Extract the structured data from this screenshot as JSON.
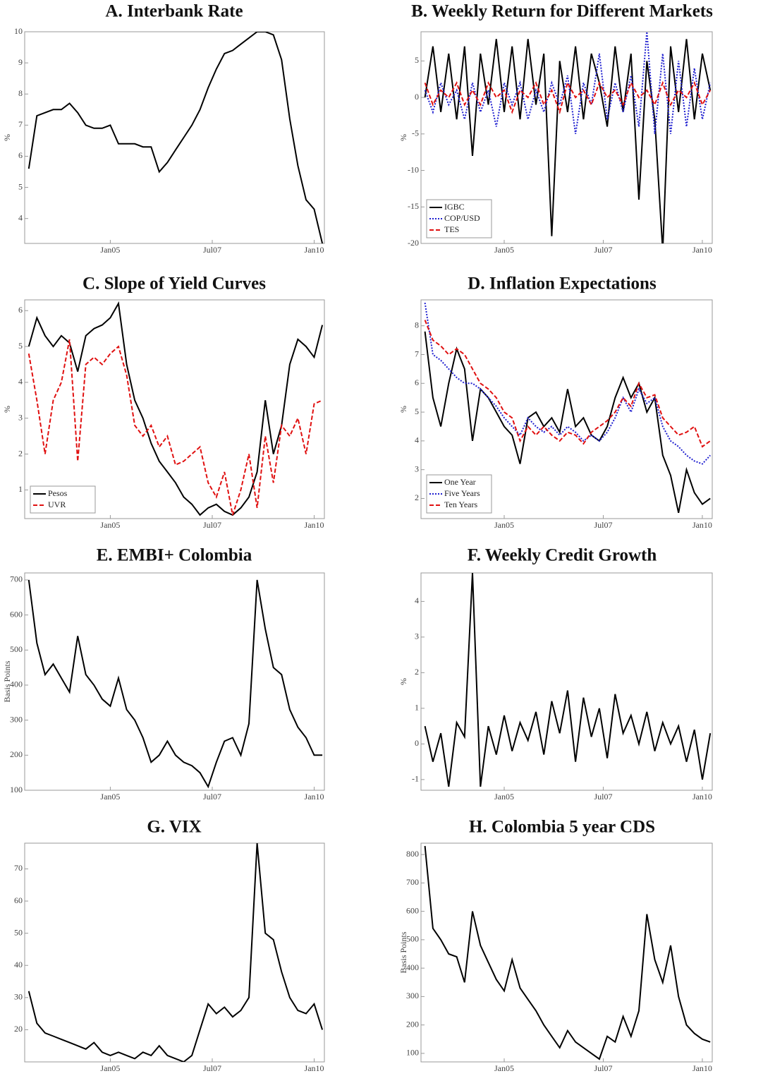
{
  "chart_data": [
    {
      "type": "line",
      "title": "A. Interbank Rate",
      "y_label": "%",
      "x": [
        2003.0,
        2003.2,
        2003.4,
        2003.6,
        2003.8,
        2004.0,
        2004.2,
        2004.4,
        2004.6,
        2004.8,
        2005.0,
        2005.2,
        2005.4,
        2005.6,
        2005.8,
        2006.0,
        2006.2,
        2006.4,
        2006.6,
        2006.8,
        2007.0,
        2007.2,
        2007.4,
        2007.6,
        2007.8,
        2008.0,
        2008.2,
        2008.4,
        2008.6,
        2008.8,
        2009.0,
        2009.2,
        2009.4,
        2009.6,
        2009.8,
        2010.0,
        2010.2
      ],
      "values": [
        5.6,
        7.3,
        7.4,
        7.5,
        7.5,
        7.7,
        7.4,
        7.0,
        6.9,
        6.9,
        7.0,
        6.4,
        6.4,
        6.4,
        6.3,
        6.3,
        5.5,
        5.8,
        6.2,
        6.6,
        7.0,
        7.5,
        8.2,
        8.8,
        9.3,
        9.4,
        9.6,
        9.8,
        10.0,
        10.0,
        9.9,
        9.1,
        7.2,
        5.7,
        4.6,
        4.3,
        3.2
      ],
      "color": "#000000",
      "xlim": [
        2002.9,
        2010.25
      ],
      "xticks": [
        {
          "value": 2005,
          "label": "Jan05"
        },
        {
          "value": 2007.5,
          "label": "Jul07"
        },
        {
          "value": 2010,
          "label": "Jan10"
        }
      ],
      "ylim": [
        3.2,
        10
      ],
      "yticks": [
        4,
        5,
        6,
        7,
        8,
        9,
        10
      ]
    },
    {
      "type": "line",
      "title": "B. Weekly Return for Different Markets",
      "y_label": "%",
      "x": [
        2003.0,
        2003.2,
        2003.4,
        2003.6,
        2003.8,
        2004.0,
        2004.2,
        2004.4,
        2004.6,
        2004.8,
        2005.0,
        2005.2,
        2005.4,
        2005.6,
        2005.8,
        2006.0,
        2006.2,
        2006.4,
        2006.6,
        2006.8,
        2007.0,
        2007.2,
        2007.4,
        2007.6,
        2007.8,
        2008.0,
        2008.2,
        2008.4,
        2008.6,
        2008.8,
        2009.0,
        2009.2,
        2009.4,
        2009.6,
        2009.8,
        2010.0,
        2010.2
      ],
      "series": [
        {
          "name": "IGBC",
          "color": "#000000",
          "style": "solid",
          "values": [
            0,
            7,
            -2,
            6,
            -3,
            7,
            -8,
            6,
            -1,
            8,
            -2,
            7,
            -3,
            8,
            -1,
            6,
            -19,
            5,
            -2,
            7,
            -3,
            6,
            2,
            -4,
            7,
            -2,
            6,
            -14,
            5,
            -3,
            -21,
            7,
            -2,
            8,
            -3,
            6,
            1
          ]
        },
        {
          "name": "COP/USD",
          "color": "#1f1fd0",
          "style": "dotted",
          "values": [
            1,
            -2,
            2,
            -1,
            1,
            -3,
            2,
            -2,
            1,
            -4,
            2,
            -1,
            2,
            -3,
            1,
            -2,
            2,
            -1,
            3,
            -5,
            2,
            -1,
            6,
            -3,
            2,
            -2,
            3,
            -4,
            9,
            -5,
            6,
            -5,
            5,
            -4,
            4,
            -3,
            2
          ]
        },
        {
          "name": "TES",
          "color": "#e01010",
          "style": "dashed",
          "values": [
            2,
            -1,
            1,
            0,
            2,
            -1,
            1,
            -1,
            2,
            0,
            1,
            -2,
            1,
            0,
            2,
            -1,
            1,
            -2,
            2,
            0,
            1,
            -1,
            2,
            0,
            1,
            -1,
            2,
            0,
            1,
            -1,
            2,
            -1,
            1,
            0,
            2,
            -1,
            1
          ]
        }
      ],
      "legend": "lower left",
      "xlim": [
        2002.9,
        2010.25
      ],
      "xticks": [
        {
          "value": 2005,
          "label": "Jan05"
        },
        {
          "value": 2007.5,
          "label": "Jul07"
        },
        {
          "value": 2010,
          "label": "Jan10"
        }
      ],
      "ylim": [
        -20,
        9
      ],
      "yticks": [
        -20,
        -15,
        -10,
        -5,
        0,
        5
      ]
    },
    {
      "type": "line",
      "title": "C. Slope of Yield Curves",
      "y_label": "%",
      "x": [
        2003.0,
        2003.2,
        2003.4,
        2003.6,
        2003.8,
        2004.0,
        2004.2,
        2004.4,
        2004.6,
        2004.8,
        2005.0,
        2005.2,
        2005.4,
        2005.6,
        2005.8,
        2006.0,
        2006.2,
        2006.4,
        2006.6,
        2006.8,
        2007.0,
        2007.2,
        2007.4,
        2007.6,
        2007.8,
        2008.0,
        2008.2,
        2008.4,
        2008.6,
        2008.8,
        2009.0,
        2009.2,
        2009.4,
        2009.6,
        2009.8,
        2010.0,
        2010.2
      ],
      "series": [
        {
          "name": "Pesos",
          "color": "#000000",
          "style": "solid",
          "values": [
            5.0,
            5.8,
            5.3,
            5.0,
            5.3,
            5.1,
            4.3,
            5.3,
            5.5,
            5.6,
            5.8,
            6.2,
            4.5,
            3.5,
            3.0,
            2.3,
            1.8,
            1.5,
            1.2,
            0.8,
            0.6,
            0.3,
            0.5,
            0.6,
            0.4,
            0.3,
            0.5,
            0.8,
            1.5,
            3.5,
            2.0,
            2.8,
            4.5,
            5.2,
            5.0,
            4.7,
            5.6
          ]
        },
        {
          "name": "UVR",
          "color": "#e01010",
          "style": "dashed",
          "values": [
            4.8,
            3.5,
            2.0,
            3.5,
            4.0,
            5.2,
            1.8,
            4.5,
            4.7,
            4.5,
            4.8,
            5.0,
            4.2,
            2.8,
            2.5,
            2.8,
            2.2,
            2.5,
            1.7,
            1.8,
            2.0,
            2.2,
            1.2,
            0.8,
            1.5,
            0.3,
            1.0,
            2.0,
            0.5,
            2.5,
            1.2,
            2.8,
            2.5,
            3.0,
            2.0,
            3.4,
            3.5
          ]
        }
      ],
      "legend": "lower left",
      "xlim": [
        2002.9,
        2010.25
      ],
      "xticks": [
        {
          "value": 2005,
          "label": "Jan05"
        },
        {
          "value": 2007.5,
          "label": "Jul07"
        },
        {
          "value": 2010,
          "label": "Jan10"
        }
      ],
      "ylim": [
        0.2,
        6.3
      ],
      "yticks": [
        1,
        2,
        3,
        4,
        5,
        6
      ]
    },
    {
      "type": "line",
      "title": "D. Inflation Expectations",
      "y_label": "%",
      "x": [
        2003.0,
        2003.2,
        2003.4,
        2003.6,
        2003.8,
        2004.0,
        2004.2,
        2004.4,
        2004.6,
        2004.8,
        2005.0,
        2005.2,
        2005.4,
        2005.6,
        2005.8,
        2006.0,
        2006.2,
        2006.4,
        2006.6,
        2006.8,
        2007.0,
        2007.2,
        2007.4,
        2007.6,
        2007.8,
        2008.0,
        2008.2,
        2008.4,
        2008.6,
        2008.8,
        2009.0,
        2009.2,
        2009.4,
        2009.6,
        2009.8,
        2010.0,
        2010.2
      ],
      "series": [
        {
          "name": "One Year",
          "color": "#000000",
          "style": "solid",
          "values": [
            7.8,
            5.5,
            4.5,
            6.0,
            7.2,
            6.5,
            4.0,
            5.8,
            5.5,
            5.0,
            4.5,
            4.2,
            3.2,
            4.8,
            5.0,
            4.5,
            4.8,
            4.3,
            5.8,
            4.5,
            4.8,
            4.2,
            4.0,
            4.5,
            5.5,
            6.2,
            5.5,
            6.0,
            5.0,
            5.5,
            3.5,
            2.8,
            1.5,
            3.0,
            2.2,
            1.8,
            2.0
          ]
        },
        {
          "name": "Five Years",
          "color": "#1f1fd0",
          "style": "dotted",
          "values": [
            8.8,
            7.0,
            6.8,
            6.5,
            6.2,
            6.0,
            6.0,
            5.8,
            5.5,
            5.2,
            4.8,
            4.5,
            4.2,
            4.8,
            4.5,
            4.3,
            4.5,
            4.2,
            4.5,
            4.3,
            4.0,
            4.2,
            4.0,
            4.3,
            4.8,
            5.5,
            5.0,
            5.8,
            5.3,
            5.5,
            4.5,
            4.0,
            3.8,
            3.5,
            3.3,
            3.2,
            3.5
          ]
        },
        {
          "name": "Ten Years",
          "color": "#e01010",
          "style": "dashed",
          "values": [
            8.2,
            7.5,
            7.3,
            7.0,
            7.2,
            7.0,
            6.5,
            6.0,
            5.8,
            5.5,
            5.0,
            4.8,
            4.0,
            4.5,
            4.2,
            4.5,
            4.2,
            4.0,
            4.3,
            4.2,
            3.9,
            4.3,
            4.5,
            4.7,
            5.0,
            5.5,
            5.2,
            6.0,
            5.5,
            5.6,
            4.8,
            4.5,
            4.2,
            4.3,
            4.5,
            3.8,
            4.0
          ]
        }
      ],
      "legend": "lower left",
      "xlim": [
        2002.9,
        2010.25
      ],
      "xticks": [
        {
          "value": 2005,
          "label": "Jan05"
        },
        {
          "value": 2007.5,
          "label": "Jul07"
        },
        {
          "value": 2010,
          "label": "Jan10"
        }
      ],
      "ylim": [
        1.3,
        8.9
      ],
      "yticks": [
        2,
        3,
        4,
        5,
        6,
        7,
        8
      ]
    },
    {
      "type": "line",
      "title": "E. EMBI+ Colombia",
      "y_label": "Basis Points",
      "x": [
        2003.0,
        2003.2,
        2003.4,
        2003.6,
        2003.8,
        2004.0,
        2004.2,
        2004.4,
        2004.6,
        2004.8,
        2005.0,
        2005.2,
        2005.4,
        2005.6,
        2005.8,
        2006.0,
        2006.2,
        2006.4,
        2006.6,
        2006.8,
        2007.0,
        2007.2,
        2007.4,
        2007.6,
        2007.8,
        2008.0,
        2008.2,
        2008.4,
        2008.6,
        2008.8,
        2009.0,
        2009.2,
        2009.4,
        2009.6,
        2009.8,
        2010.0,
        2010.2
      ],
      "values": [
        700,
        520,
        430,
        460,
        420,
        380,
        540,
        430,
        400,
        360,
        340,
        420,
        330,
        300,
        250,
        180,
        200,
        240,
        200,
        180,
        170,
        150,
        110,
        180,
        240,
        250,
        200,
        290,
        700,
        560,
        450,
        430,
        330,
        280,
        250,
        200,
        200
      ],
      "color": "#000000",
      "xlim": [
        2002.9,
        2010.25
      ],
      "xticks": [
        {
          "value": 2005,
          "label": "Jan05"
        },
        {
          "value": 2007.5,
          "label": "Jul07"
        },
        {
          "value": 2010,
          "label": "Jan10"
        }
      ],
      "ylim": [
        100,
        720
      ],
      "yticks": [
        100,
        200,
        300,
        400,
        500,
        600,
        700
      ]
    },
    {
      "type": "line",
      "title": "F. Weekly Credit Growth",
      "y_label": "%",
      "x": [
        2003.0,
        2003.2,
        2003.4,
        2003.6,
        2003.8,
        2004.0,
        2004.2,
        2004.4,
        2004.6,
        2004.8,
        2005.0,
        2005.2,
        2005.4,
        2005.6,
        2005.8,
        2006.0,
        2006.2,
        2006.4,
        2006.6,
        2006.8,
        2007.0,
        2007.2,
        2007.4,
        2007.6,
        2007.8,
        2008.0,
        2008.2,
        2008.4,
        2008.6,
        2008.8,
        2009.0,
        2009.2,
        2009.4,
        2009.6,
        2009.8,
        2010.0,
        2010.2
      ],
      "values": [
        0.5,
        -0.5,
        0.3,
        -1.2,
        0.6,
        0.2,
        4.8,
        -1.2,
        0.5,
        -0.3,
        0.8,
        -0.2,
        0.6,
        0.1,
        0.9,
        -0.3,
        1.2,
        0.3,
        1.5,
        -0.5,
        1.3,
        0.2,
        1.0,
        -0.4,
        1.4,
        0.3,
        0.8,
        0.0,
        0.9,
        -0.2,
        0.6,
        0.0,
        0.5,
        -0.5,
        0.4,
        -1.0,
        0.3
      ],
      "color": "#000000",
      "xlim": [
        2002.9,
        2010.25
      ],
      "xticks": [
        {
          "value": 2005,
          "label": "Jan05"
        },
        {
          "value": 2007.5,
          "label": "Jul07"
        },
        {
          "value": 2010,
          "label": "Jan10"
        }
      ],
      "ylim": [
        -1.3,
        4.8
      ],
      "yticks": [
        -1,
        0,
        1,
        2,
        3,
        4
      ]
    },
    {
      "type": "line",
      "title": "G. VIX",
      "x": [
        2003.0,
        2003.2,
        2003.4,
        2003.6,
        2003.8,
        2004.0,
        2004.2,
        2004.4,
        2004.6,
        2004.8,
        2005.0,
        2005.2,
        2005.4,
        2005.6,
        2005.8,
        2006.0,
        2006.2,
        2006.4,
        2006.6,
        2006.8,
        2007.0,
        2007.2,
        2007.4,
        2007.6,
        2007.8,
        2008.0,
        2008.2,
        2008.4,
        2008.6,
        2008.8,
        2009.0,
        2009.2,
        2009.4,
        2009.6,
        2009.8,
        2010.0,
        2010.2
      ],
      "values": [
        32,
        22,
        19,
        18,
        17,
        16,
        15,
        14,
        16,
        13,
        12,
        13,
        12,
        11,
        13,
        12,
        15,
        12,
        11,
        10,
        12,
        20,
        28,
        25,
        27,
        24,
        26,
        30,
        78,
        50,
        48,
        38,
        30,
        26,
        25,
        28,
        20
      ],
      "color": "#000000",
      "xlim": [
        2002.9,
        2010.25
      ],
      "xticks": [
        {
          "value": 2005,
          "label": "Jan05"
        },
        {
          "value": 2007.5,
          "label": "Jul07"
        },
        {
          "value": 2010,
          "label": "Jan10"
        }
      ],
      "ylim": [
        10,
        78
      ],
      "yticks": [
        20,
        30,
        40,
        50,
        60,
        70
      ]
    },
    {
      "type": "line",
      "title": "H. Colombia 5 year CDS",
      "y_label": "Basis Points",
      "x": [
        2003.0,
        2003.2,
        2003.4,
        2003.6,
        2003.8,
        2004.0,
        2004.2,
        2004.4,
        2004.6,
        2004.8,
        2005.0,
        2005.2,
        2005.4,
        2005.6,
        2005.8,
        2006.0,
        2006.2,
        2006.4,
        2006.6,
        2006.8,
        2007.0,
        2007.2,
        2007.4,
        2007.6,
        2007.8,
        2008.0,
        2008.2,
        2008.4,
        2008.6,
        2008.8,
        2009.0,
        2009.2,
        2009.4,
        2009.6,
        2009.8,
        2010.0,
        2010.2
      ],
      "values": [
        830,
        540,
        500,
        450,
        440,
        350,
        600,
        480,
        420,
        360,
        320,
        430,
        330,
        290,
        250,
        200,
        160,
        120,
        180,
        140,
        120,
        100,
        80,
        160,
        140,
        230,
        160,
        250,
        590,
        430,
        350,
        480,
        300,
        200,
        170,
        150,
        140
      ],
      "color": "#000000",
      "xlim": [
        2002.9,
        2010.25
      ],
      "xticks": [
        {
          "value": 2005,
          "label": "Jan05"
        },
        {
          "value": 2007.5,
          "label": "Jul07"
        },
        {
          "value": 2010,
          "label": "Jan10"
        }
      ],
      "ylim": [
        70,
        840
      ],
      "yticks": [
        100,
        200,
        300,
        400,
        500,
        600,
        700,
        800
      ]
    }
  ]
}
